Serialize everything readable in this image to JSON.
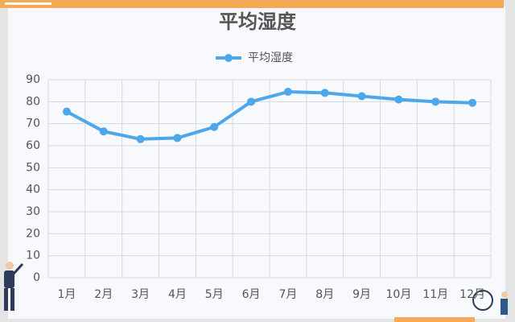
{
  "chart_data": {
    "type": "line",
    "title": "平均湿度",
    "categories": [
      "1月",
      "2月",
      "3月",
      "4月",
      "5月",
      "6月",
      "7月",
      "8月",
      "9月",
      "10月",
      "11月",
      "12月"
    ],
    "series": [
      {
        "name": "平均湿度",
        "color": "#4ea7ea",
        "values": [
          75.5,
          66.5,
          63,
          63.5,
          68.5,
          80,
          84.5,
          84,
          82.5,
          81,
          80,
          79.5
        ]
      }
    ],
    "ylim": [
      0,
      90
    ],
    "yticks": [
      0,
      10,
      20,
      30,
      40,
      50,
      60,
      70,
      80,
      90
    ],
    "grid": true,
    "legend": "top"
  }
}
